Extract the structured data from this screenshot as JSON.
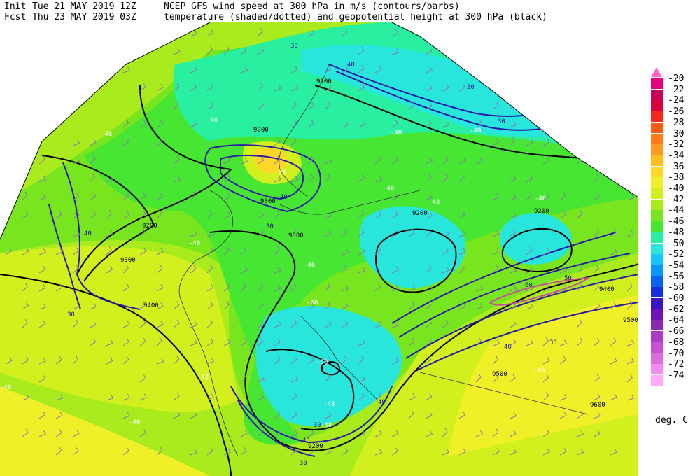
{
  "header": {
    "init_label": "Init",
    "init_time": "Tue 21 MAY 2019 12Z",
    "fcst_label": "Fcst",
    "fcst_time": "Thu 23 MAY 2019 03Z",
    "title_line1": "NCEP GFS wind speed at 300 hPa in m/s (contours/barbs)",
    "title_line2": "temperature (shaded/dotted) and geopotential height at 300 hPa (black)"
  },
  "colorbar": {
    "unit": "deg. C",
    "levels": [
      "-20",
      "-22",
      "-24",
      "-26",
      "-28",
      "-30",
      "-32",
      "-34",
      "-36",
      "-38",
      "-40",
      "-42",
      "-44",
      "-46",
      "-48",
      "-50",
      "-52",
      "-54",
      "-56",
      "-58",
      "-60",
      "-62",
      "-64",
      "-66",
      "-68",
      "-70",
      "-72",
      "-74"
    ],
    "colors": [
      "#e6007e",
      "#c8005a",
      "#d7003c",
      "#f0281e",
      "#ff5a14",
      "#ff7a14",
      "#ff9a1e",
      "#ffbe1e",
      "#ffd728",
      "#f0f028",
      "#d2f01e",
      "#aaeb1e",
      "#78e61e",
      "#46e632",
      "#28f0a0",
      "#28e6dc",
      "#14c8ff",
      "#0a96ff",
      "#0a64f0",
      "#1432dc",
      "#3c14c8",
      "#6e14b4",
      "#8c28b4",
      "#aa3cc3",
      "#c850d2",
      "#dc6edc",
      "#f08cf0",
      "#ffaaff"
    ],
    "top_arrow_color": "#ff66cc"
  },
  "map": {
    "height_labels": [
      "9100",
      "9200",
      "9200",
      "9200",
      "9200",
      "9300",
      "9300",
      "9300",
      "9400",
      "9400",
      "9500",
      "9500",
      "9600",
      "9200"
    ],
    "wind_labels": [
      "30",
      "30",
      "30",
      "40",
      "40",
      "40",
      "50",
      "60",
      "30",
      "30",
      "30",
      "40",
      "40",
      "30",
      "30",
      "40"
    ],
    "temp_labels": [
      "-48",
      "-48",
      "-48",
      "-46",
      "-46",
      "-48",
      "-46",
      "-48",
      "-48",
      "-46",
      "-48",
      "-48",
      "-42",
      "-40",
      "-40",
      "-40",
      "-38",
      "-50",
      "-48"
    ],
    "height_contour_color": "#000000",
    "wind_contour_color": "#2a1aa8",
    "barb_color": "#8a7aa8"
  }
}
